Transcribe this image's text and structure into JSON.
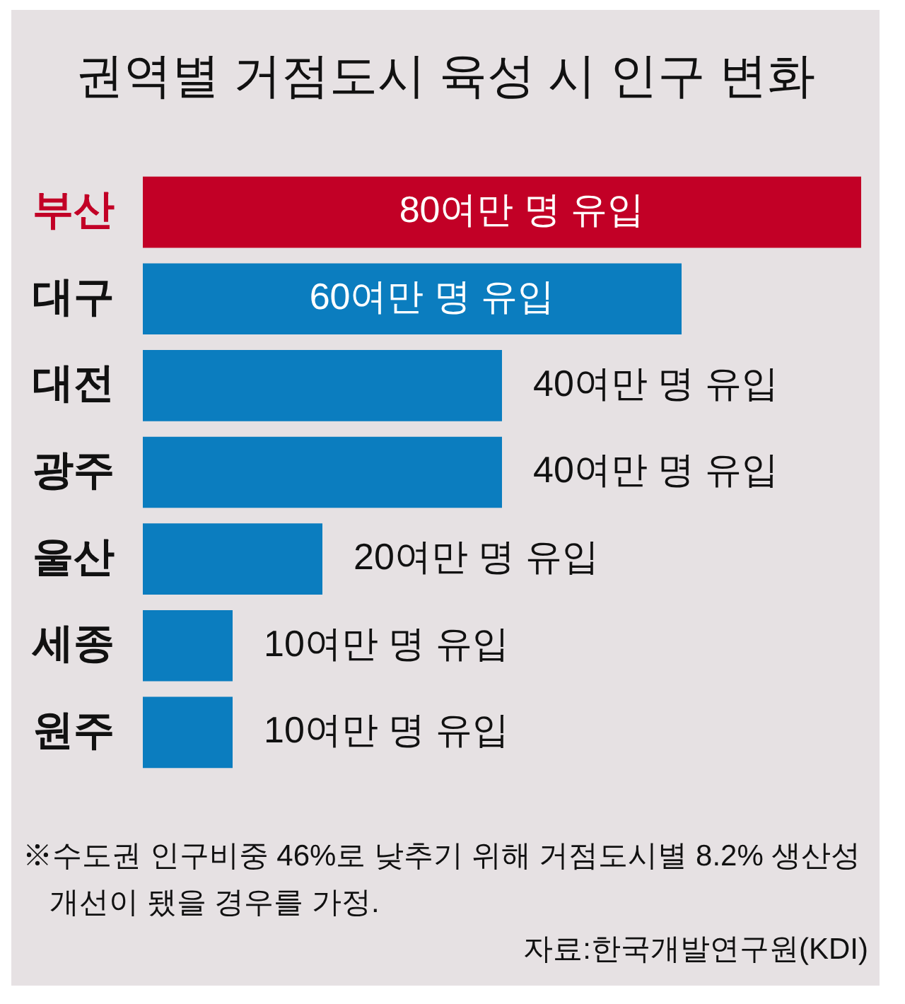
{
  "chart_data": {
    "type": "bar",
    "orientation": "horizontal",
    "title": "권역별 거점도시 육성 시 인구 변화",
    "categories": [
      "부산",
      "대구",
      "대전",
      "광주",
      "울산",
      "세종",
      "원주"
    ],
    "values": [
      80,
      60,
      40,
      40,
      20,
      10,
      10
    ],
    "value_labels": [
      "80여만 명 유입",
      "60여만 명 유입",
      "40여만 명 유입",
      "40여만 명 유입",
      "20여만 명 유입",
      "10여만 명 유입",
      "10여만 명 유입"
    ],
    "colors": [
      "#c20026",
      "#0b7dbf",
      "#0b7dbf",
      "#0b7dbf",
      "#0b7dbf",
      "#0b7dbf",
      "#0b7dbf"
    ],
    "tick_labels": "y",
    "grid": false,
    "annotations": [
      "※수도권 인구비중 46%로 낮추기 위해 거점도시별 8.2% 생산성 개선이 됐을 경우를 가정.",
      "자료:한국개발연구원(KDI)"
    ]
  }
}
